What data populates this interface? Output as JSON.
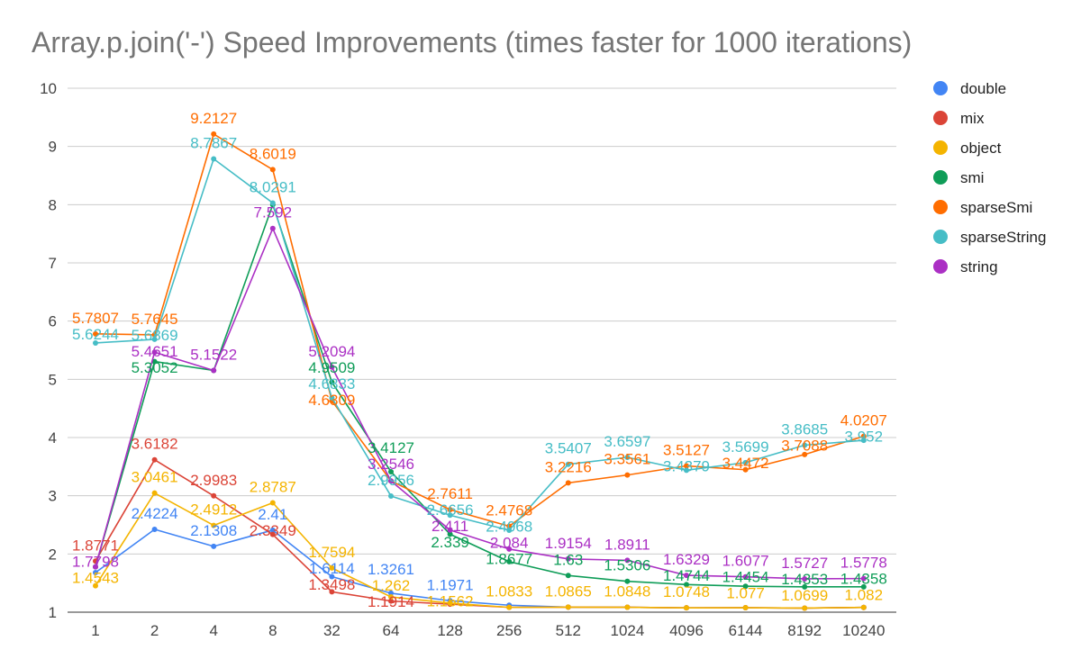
{
  "chart_data": {
    "type": "line",
    "title": "Array.p.join('-') Speed Improvements (times faster for 1000 iterations)",
    "xlabel": "",
    "ylabel": "",
    "ylim": [
      1,
      10
    ],
    "yticks": [
      1,
      2,
      3,
      4,
      5,
      6,
      7,
      8,
      9,
      10
    ],
    "grid": true,
    "legend_position": "right",
    "categories": [
      "1",
      "2",
      "4",
      "8",
      "32",
      "64",
      "128",
      "256",
      "512",
      "1024",
      "4096",
      "6144",
      "8192",
      "10240"
    ],
    "series": [
      {
        "name": "double",
        "color": "#4285F4",
        "values": [
          1.68,
          2.4224,
          2.1308,
          2.41,
          1.6114,
          1.3261,
          1.1971,
          1.12,
          1.0865,
          1.0848,
          1.0748,
          1.077,
          1.0699,
          1.082
        ]
      },
      {
        "name": "mix",
        "color": "#DB4437",
        "values": [
          1.8771,
          3.6182,
          2.9983,
          2.3349,
          1.3498,
          1.1914,
          1.1371,
          1.0833,
          1.0865,
          1.0848,
          1.0748,
          1.077,
          1.0699,
          1.082
        ]
      },
      {
        "name": "object",
        "color": "#F4B400",
        "values": [
          1.4543,
          3.0461,
          2.4912,
          2.8787,
          1.7594,
          1.262,
          1.1562,
          1.0833,
          1.0865,
          1.0848,
          1.0748,
          1.077,
          1.0699,
          1.082
        ]
      },
      {
        "name": "smi",
        "color": "#0F9D58",
        "values": [
          1.7798,
          5.3052,
          5.1522,
          8.0,
          4.9509,
          3.4127,
          2.339,
          1.8677,
          1.63,
          1.5306,
          1.4744,
          1.4454,
          1.4353,
          1.4358
        ]
      },
      {
        "name": "sparseSmi",
        "color": "#FF6D00",
        "values": [
          5.7807,
          5.7645,
          9.2127,
          8.6019,
          4.6309,
          3.2546,
          2.7611,
          2.4768,
          3.2216,
          3.3561,
          3.5127,
          3.4472,
          3.7088,
          4.0207
        ]
      },
      {
        "name": "sparseString",
        "color": "#46BDC6",
        "values": [
          5.6244,
          5.6869,
          8.7867,
          8.0291,
          4.6833,
          2.9956,
          2.6656,
          2.4068,
          3.5407,
          3.6597,
          3.4379,
          3.5699,
          3.8685,
          3.952
        ]
      },
      {
        "name": "string",
        "color": "#AB30C4",
        "values": [
          1.7798,
          5.4651,
          5.1522,
          7.592,
          5.2094,
          3.2546,
          2.411,
          2.084,
          1.9154,
          1.8911,
          1.6329,
          1.6077,
          1.5727,
          1.5778
        ]
      }
    ],
    "data_labels": [
      {
        "series": "sparseSmi",
        "category": "1",
        "text": "5.7807"
      },
      {
        "series": "sparseString",
        "category": "1",
        "text": "5.6244"
      },
      {
        "series": "mix",
        "category": "1",
        "text": "1.8771"
      },
      {
        "series": "string",
        "category": "1",
        "text": "1.7798"
      },
      {
        "series": "object",
        "category": "1",
        "text": "1.4543"
      },
      {
        "series": "sparseSmi",
        "category": "2",
        "text": "5.7645"
      },
      {
        "series": "sparseString",
        "category": "2",
        "text": "5.6869"
      },
      {
        "series": "string",
        "category": "2",
        "text": "5.4651"
      },
      {
        "series": "smi",
        "category": "2",
        "text": "5.3052"
      },
      {
        "series": "mix",
        "category": "2",
        "text": "3.6182"
      },
      {
        "series": "object",
        "category": "2",
        "text": "3.0461"
      },
      {
        "series": "double",
        "category": "2",
        "text": "2.4224"
      },
      {
        "series": "sparseSmi",
        "category": "4",
        "text": "9.2127"
      },
      {
        "series": "sparseString",
        "category": "4",
        "text": "8.7867"
      },
      {
        "series": "string",
        "category": "4",
        "text": "5.1522"
      },
      {
        "series": "mix",
        "category": "4",
        "text": "2.9983"
      },
      {
        "series": "object",
        "category": "4",
        "text": "2.4912"
      },
      {
        "series": "double",
        "category": "4",
        "text": "2.1308"
      },
      {
        "series": "sparseSmi",
        "category": "8",
        "text": "8.6019"
      },
      {
        "series": "sparseString",
        "category": "8",
        "text": "8.0291"
      },
      {
        "series": "string",
        "category": "8",
        "text": "7.592"
      },
      {
        "series": "object",
        "category": "8",
        "text": "2.8787"
      },
      {
        "series": "double",
        "category": "8",
        "text": "2.41"
      },
      {
        "series": "mix",
        "category": "8",
        "text": "2.3349"
      },
      {
        "series": "string",
        "category": "32",
        "text": "5.2094"
      },
      {
        "series": "smi",
        "category": "32",
        "text": "4.9509"
      },
      {
        "series": "sparseString",
        "category": "32",
        "text": "4.6833"
      },
      {
        "series": "sparseSmi",
        "category": "32",
        "text": "4.6309"
      },
      {
        "series": "object",
        "category": "32",
        "text": "1.7594"
      },
      {
        "series": "double",
        "category": "32",
        "text": "1.6114"
      },
      {
        "series": "mix",
        "category": "32",
        "text": "1.3498"
      },
      {
        "series": "smi",
        "category": "64",
        "text": "3.4127"
      },
      {
        "series": "string",
        "category": "64",
        "text": "3.2546"
      },
      {
        "series": "sparseString",
        "category": "64",
        "text": "2.9956"
      },
      {
        "series": "double",
        "category": "64",
        "text": "1.3261"
      },
      {
        "series": "object",
        "category": "64",
        "text": "1.262"
      },
      {
        "series": "mix",
        "category": "64",
        "text": "1.1914"
      },
      {
        "series": "sparseSmi",
        "category": "128",
        "text": "2.7611"
      },
      {
        "series": "sparseString",
        "category": "128",
        "text": "2.6656"
      },
      {
        "series": "string",
        "category": "128",
        "text": "2.411"
      },
      {
        "series": "smi",
        "category": "128",
        "text": "2.339"
      },
      {
        "series": "double",
        "category": "128",
        "text": "1.1971"
      },
      {
        "series": "object",
        "category": "128",
        "text": "1.1562"
      },
      {
        "series": "sparseSmi",
        "category": "256",
        "text": "2.4768"
      },
      {
        "series": "sparseString",
        "category": "256",
        "text": "2.4068"
      },
      {
        "series": "string",
        "category": "256",
        "text": "2.084"
      },
      {
        "series": "smi",
        "category": "256",
        "text": "1.8677"
      },
      {
        "series": "object",
        "category": "256",
        "text": "1.0833"
      },
      {
        "series": "sparseString",
        "category": "512",
        "text": "3.5407"
      },
      {
        "series": "sparseSmi",
        "category": "512",
        "text": "3.2216"
      },
      {
        "series": "string",
        "category": "512",
        "text": "1.9154"
      },
      {
        "series": "smi",
        "category": "512",
        "text": "1.63"
      },
      {
        "series": "object",
        "category": "512",
        "text": "1.0865"
      },
      {
        "series": "sparseString",
        "category": "1024",
        "text": "3.6597"
      },
      {
        "series": "sparseSmi",
        "category": "1024",
        "text": "3.3561"
      },
      {
        "series": "string",
        "category": "1024",
        "text": "1.8911"
      },
      {
        "series": "smi",
        "category": "1024",
        "text": "1.5306"
      },
      {
        "series": "object",
        "category": "1024",
        "text": "1.0848"
      },
      {
        "series": "sparseSmi",
        "category": "4096",
        "text": "3.5127"
      },
      {
        "series": "sparseString",
        "category": "4096",
        "text": "3.4379"
      },
      {
        "series": "string",
        "category": "4096",
        "text": "1.6329"
      },
      {
        "series": "smi",
        "category": "4096",
        "text": "1.4744"
      },
      {
        "series": "object",
        "category": "4096",
        "text": "1.0748"
      },
      {
        "series": "sparseString",
        "category": "6144",
        "text": "3.5699"
      },
      {
        "series": "sparseSmi",
        "category": "6144",
        "text": "3.4472"
      },
      {
        "series": "string",
        "category": "6144",
        "text": "1.6077"
      },
      {
        "series": "smi",
        "category": "6144",
        "text": "1.4454"
      },
      {
        "series": "object",
        "category": "6144",
        "text": "1.077"
      },
      {
        "series": "sparseString",
        "category": "8192",
        "text": "3.8685"
      },
      {
        "series": "sparseSmi",
        "category": "8192",
        "text": "3.7088"
      },
      {
        "series": "string",
        "category": "8192",
        "text": "1.5727"
      },
      {
        "series": "smi",
        "category": "8192",
        "text": "1.4353"
      },
      {
        "series": "object",
        "category": "8192",
        "text": "1.0699"
      },
      {
        "series": "sparseSmi",
        "category": "10240",
        "text": "4.0207"
      },
      {
        "series": "sparseString",
        "category": "10240",
        "text": "3.952"
      },
      {
        "series": "string",
        "category": "10240",
        "text": "1.5778"
      },
      {
        "series": "smi",
        "category": "10240",
        "text": "1.4358"
      },
      {
        "series": "object",
        "category": "10240",
        "text": "1.082"
      }
    ]
  }
}
